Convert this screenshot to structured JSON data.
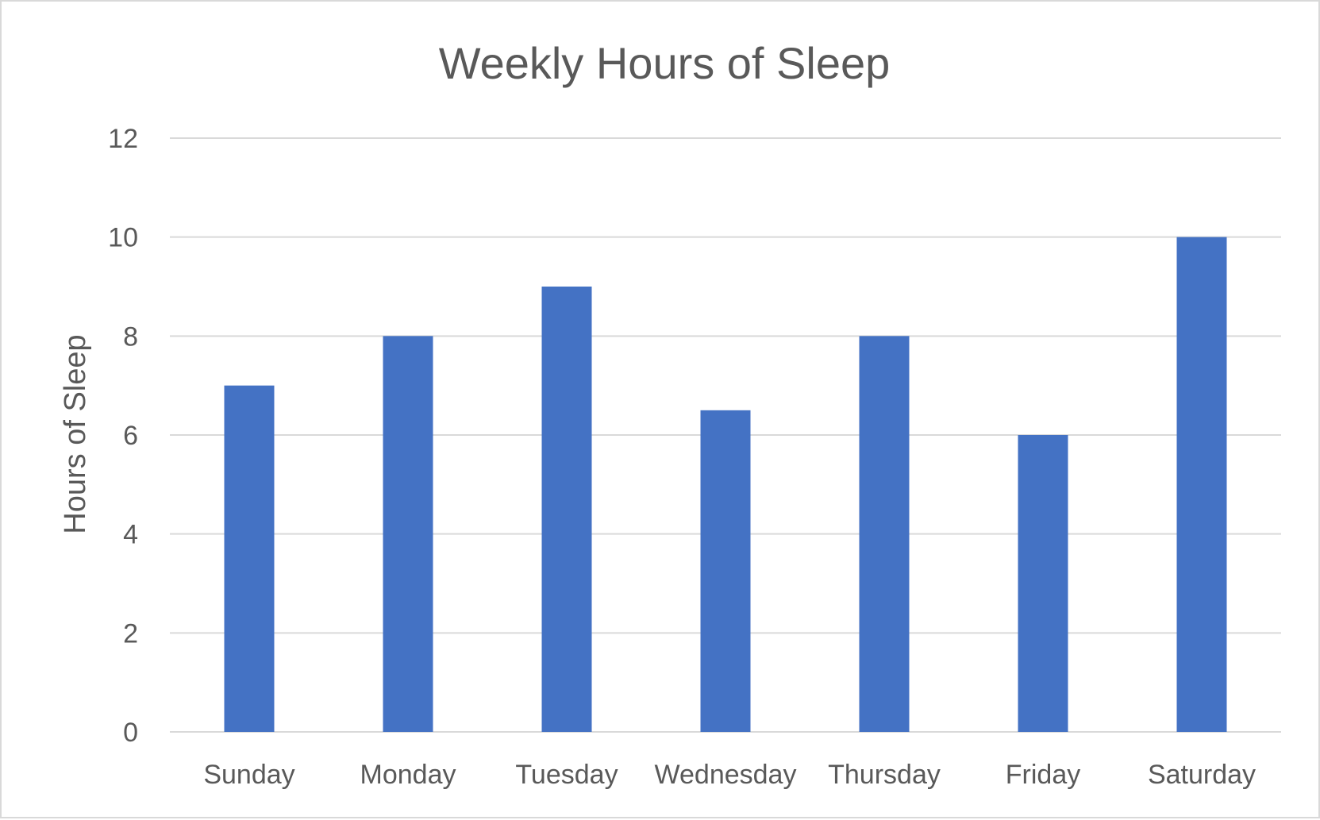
{
  "chart_data": {
    "type": "bar",
    "title": "Weekly Hours of Sleep",
    "xlabel": "",
    "ylabel": "Hours of Sleep",
    "categories": [
      "Sunday",
      "Monday",
      "Tuesday",
      "Wednesday",
      "Thursday",
      "Friday",
      "Saturday"
    ],
    "values": [
      7,
      8,
      9,
      6.5,
      8,
      6,
      10
    ],
    "ylim": [
      0,
      12
    ],
    "yticks": [
      "0",
      "2",
      "4",
      "6",
      "8",
      "10",
      "12"
    ],
    "ytick_values": [
      0,
      2,
      4,
      6,
      8,
      10,
      12
    ],
    "grid": true,
    "legend": "none",
    "bar_color": "#4472C4"
  }
}
